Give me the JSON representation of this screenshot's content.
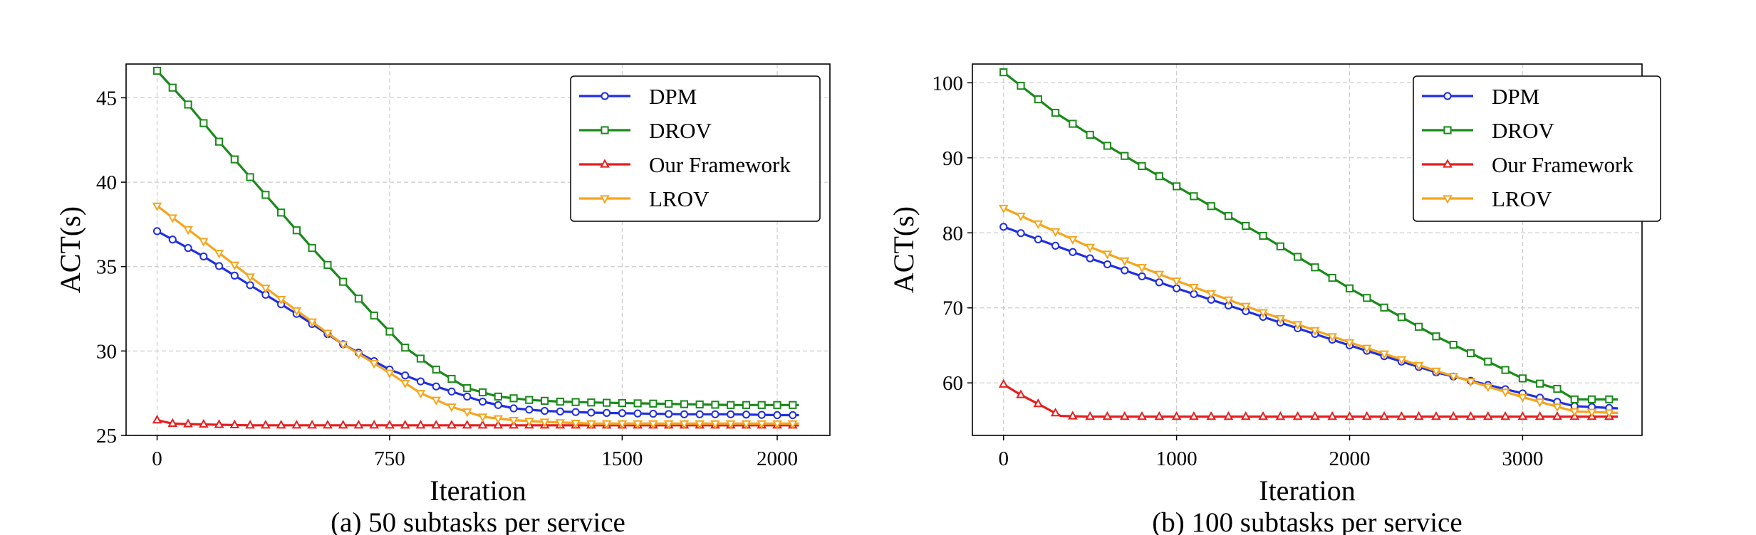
{
  "colors": {
    "DPM": "#1f2fe0",
    "DROV": "#1a8a1a",
    "Our Framework": "#e81d1d",
    "LROV": "#f5a51e",
    "grid": "#cccccc"
  },
  "chart_data": [
    {
      "type": "line",
      "caption": "(a) 50 subtasks per service",
      "xlabel": "Iteration",
      "ylabel": "ACT(s)",
      "xlim": [
        -100,
        2170
      ],
      "ylim": [
        25,
        47
      ],
      "xticks": [
        0,
        750,
        1500,
        2000
      ],
      "yticks": [
        25,
        30,
        35,
        40,
        45
      ],
      "grid": true,
      "legend_position": "top-right",
      "series": [
        {
          "name": "DPM",
          "marker": "circle",
          "x": [
            0,
            150,
            300,
            450,
            600,
            750,
            850,
            950,
            1050,
            1150,
            1250,
            1400,
            1550,
            1700,
            1850,
            2000,
            2070
          ],
          "y": [
            37.1,
            35.6,
            33.9,
            32.2,
            30.4,
            28.9,
            28.2,
            27.6,
            27.0,
            26.6,
            26.45,
            26.35,
            26.3,
            26.25,
            26.25,
            26.2,
            26.2
          ]
        },
        {
          "name": "DROV",
          "marker": "square",
          "x": [
            0,
            100,
            200,
            300,
            400,
            500,
            600,
            700,
            800,
            900,
            1000,
            1100,
            1200,
            1300,
            1400,
            1550,
            1700,
            1850,
            2000,
            2070
          ],
          "y": [
            46.6,
            44.6,
            42.4,
            40.3,
            38.2,
            36.1,
            34.1,
            32.1,
            30.2,
            28.9,
            27.8,
            27.3,
            27.1,
            27.0,
            26.95,
            26.9,
            26.85,
            26.8,
            26.8,
            26.8
          ]
        },
        {
          "name": "Our Framework",
          "marker": "triangle-up",
          "x": [
            0,
            50,
            150,
            300,
            500,
            750,
            1000,
            1250,
            1500,
            1750,
            2000,
            2070
          ],
          "y": [
            25.9,
            25.7,
            25.65,
            25.6,
            25.6,
            25.6,
            25.6,
            25.6,
            25.6,
            25.6,
            25.6,
            25.6
          ]
        },
        {
          "name": "LROV",
          "marker": "triangle-down",
          "x": [
            0,
            150,
            300,
            450,
            600,
            750,
            850,
            950,
            1050,
            1150,
            1250,
            1400,
            1550,
            1700,
            1850,
            2000,
            2070
          ],
          "y": [
            38.6,
            36.5,
            34.4,
            32.4,
            30.4,
            28.7,
            27.5,
            26.7,
            26.1,
            25.9,
            25.8,
            25.7,
            25.7,
            25.7,
            25.7,
            25.7,
            25.7
          ]
        }
      ]
    },
    {
      "type": "line",
      "caption": "(b) 100 subtasks per service",
      "xlabel": "Iteration",
      "ylabel": "ACT(s)",
      "xlim": [
        -180,
        3690
      ],
      "ylim": [
        53,
        102.5
      ],
      "xticks": [
        0,
        1000,
        2000,
        3000
      ],
      "yticks": [
        60,
        70,
        80,
        90,
        100
      ],
      "grid": true,
      "legend_position": "top-right",
      "series": [
        {
          "name": "DPM",
          "marker": "circle",
          "x": [
            0,
            500,
            1000,
            1500,
            2000,
            2500,
            3000,
            3300,
            3550
          ],
          "y": [
            80.8,
            76.6,
            72.6,
            68.8,
            65.0,
            61.4,
            58.6,
            56.9,
            56.6
          ]
        },
        {
          "name": "DROV",
          "marker": "square",
          "x": [
            0,
            300,
            600,
            1000,
            1500,
            2000,
            2500,
            3000,
            3200,
            3300,
            3550
          ],
          "y": [
            101.4,
            96.0,
            91.6,
            86.2,
            79.6,
            72.6,
            66.2,
            60.6,
            59.2,
            57.8,
            57.8
          ]
        },
        {
          "name": "Our Framework",
          "marker": "triangle-up",
          "x": [
            0,
            100,
            200,
            330,
            500,
            1000,
            1500,
            2000,
            2500,
            3000,
            3550
          ],
          "y": [
            59.8,
            58.4,
            57.2,
            55.6,
            55.5,
            55.5,
            55.5,
            55.5,
            55.5,
            55.5,
            55.5
          ]
        },
        {
          "name": "LROV",
          "marker": "triangle-down",
          "x": [
            0,
            500,
            1000,
            1500,
            2000,
            2500,
            3000,
            3300,
            3550
          ],
          "y": [
            83.3,
            78.1,
            73.6,
            69.4,
            65.4,
            61.6,
            58.1,
            56.2,
            56.0
          ]
        }
      ]
    }
  ]
}
